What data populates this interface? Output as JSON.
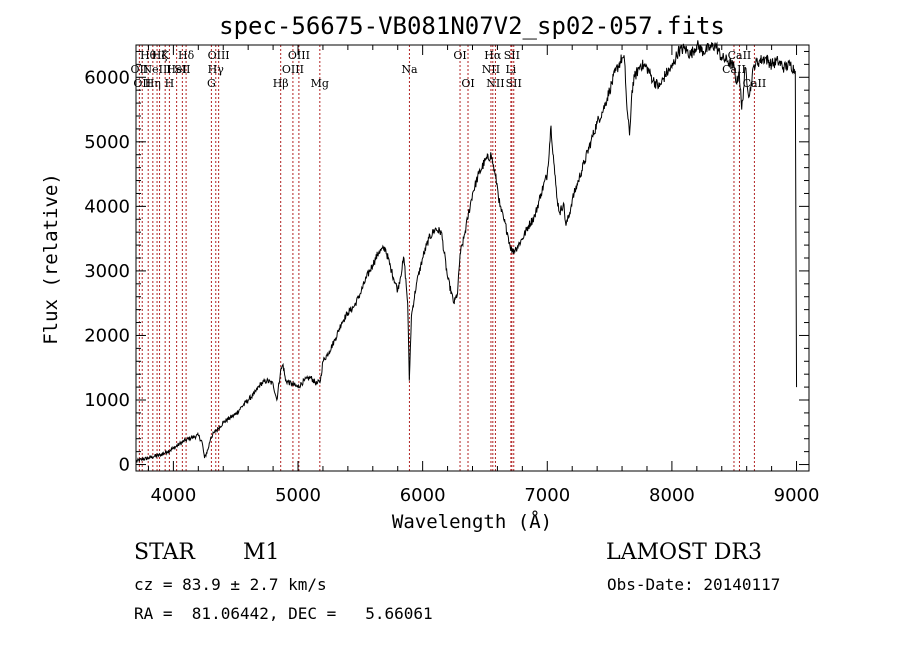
{
  "chart_data": {
    "type": "line",
    "title": "spec-56675-VB081N07V2_sp02-057.fits",
    "xlabel": "Wavelength (Å)",
    "ylabel": "Flux (relative)",
    "xlim": [
      3700,
      9100
    ],
    "ylim": [
      -100,
      6500
    ],
    "xticks": [
      4000,
      5000,
      6000,
      7000,
      8000,
      9000
    ],
    "xtick_labels": [
      "4000",
      "5000",
      "6000",
      "7000",
      "8000",
      "9000"
    ],
    "yticks": [
      0,
      1000,
      2000,
      3000,
      4000,
      5000,
      6000
    ],
    "ytick_labels": [
      "0",
      "1000",
      "2000",
      "3000",
      "4000",
      "5000",
      "6000"
    ],
    "series": [
      {
        "name": "spectrum",
        "x": [
          3700,
          3750,
          3800,
          3850,
          3900,
          3950,
          4000,
          4050,
          4100,
          4150,
          4200,
          4230,
          4250,
          4280,
          4300,
          4330,
          4360,
          4400,
          4450,
          4500,
          4550,
          4600,
          4650,
          4700,
          4750,
          4800,
          4830,
          4860,
          4880,
          4900,
          4950,
          5000,
          5050,
          5100,
          5150,
          5180,
          5200,
          5250,
          5300,
          5350,
          5400,
          5450,
          5500,
          5550,
          5600,
          5650,
          5700,
          5750,
          5800,
          5850,
          5880,
          5893,
          5910,
          5950,
          6000,
          6050,
          6100,
          6150,
          6200,
          6250,
          6280,
          6300,
          6330,
          6360,
          6400,
          6450,
          6500,
          6550,
          6565,
          6580,
          6600,
          6620,
          6650,
          6680,
          6700,
          6720,
          6750,
          6800,
          6850,
          6900,
          6950,
          7000,
          7030,
          7060,
          7080,
          7100,
          7130,
          7150,
          7180,
          7200,
          7250,
          7300,
          7350,
          7400,
          7450,
          7500,
          7550,
          7600,
          7620,
          7640,
          7660,
          7680,
          7700,
          7750,
          7800,
          7850,
          7900,
          7950,
          8000,
          8050,
          8100,
          8150,
          8200,
          8250,
          8300,
          8350,
          8400,
          8450,
          8500,
          8520,
          8540,
          8560,
          8590,
          8620,
          8660,
          8700,
          8750,
          8800,
          8850,
          8900,
          8950,
          8990,
          9000
        ],
        "y": [
          50,
          80,
          100,
          130,
          150,
          200,
          250,
          320,
          380,
          420,
          450,
          350,
          100,
          250,
          420,
          500,
          560,
          650,
          720,
          780,
          900,
          1000,
          1100,
          1250,
          1300,
          1250,
          1000,
          1450,
          1550,
          1300,
          1250,
          1200,
          1300,
          1350,
          1250,
          1300,
          1600,
          1750,
          1950,
          2200,
          2350,
          2450,
          2650,
          2900,
          3100,
          3300,
          3350,
          3000,
          2700,
          3200,
          2500,
          1300,
          2300,
          2800,
          3200,
          3500,
          3650,
          3600,
          2900,
          2500,
          2650,
          3250,
          3500,
          3800,
          4200,
          4500,
          4700,
          4800,
          4650,
          4500,
          4300,
          4000,
          3800,
          3600,
          3400,
          3300,
          3350,
          3500,
          3700,
          3850,
          4200,
          4500,
          5250,
          4500,
          4100,
          3900,
          4050,
          3700,
          3900,
          4100,
          4400,
          4700,
          5000,
          5300,
          5500,
          5800,
          6100,
          6300,
          6250,
          5500,
          5100,
          5800,
          6000,
          6200,
          6150,
          5950,
          5850,
          6050,
          6150,
          6400,
          6450,
          6350,
          6500,
          6400,
          6450,
          6500,
          6300,
          6250,
          6150,
          5900,
          6100,
          5500,
          6150,
          5700,
          6200,
          6250,
          6300,
          6200,
          6250,
          6150,
          6200,
          6100,
          1200
        ]
      }
    ],
    "lines": [
      {
        "x": 3727,
        "label": "OII",
        "row": 2
      },
      {
        "x": 3750,
        "label": "OII",
        "row": 3
      },
      {
        "x": 3798,
        "label": "Hθ",
        "row": 1
      },
      {
        "x": 3835,
        "label": "Hη",
        "row": 3
      },
      {
        "x": 3869,
        "label": "NeIII",
        "row": 2
      },
      {
        "x": 3889,
        "label": "Hζ",
        "row": 1
      },
      {
        "x": 3934,
        "label": "K",
        "row": 1
      },
      {
        "x": 3968,
        "label": "H",
        "row": 3
      },
      {
        "x": 4026,
        "label": "HeI",
        "row": 2
      },
      {
        "x": 4072,
        "label": "SII",
        "row": 2
      },
      {
        "x": 4102,
        "label": "Hδ",
        "row": 1
      },
      {
        "x": 4305,
        "label": "G",
        "row": 3
      },
      {
        "x": 4340,
        "label": "Hγ",
        "row": 2
      },
      {
        "x": 4363,
        "label": "OIII",
        "row": 1
      },
      {
        "x": 4861,
        "label": "Hβ",
        "row": 3
      },
      {
        "x": 4959,
        "label": "OIII",
        "row": 2
      },
      {
        "x": 5007,
        "label": "OIII",
        "row": 1
      },
      {
        "x": 5175,
        "label": "Mg",
        "row": 3
      },
      {
        "x": 5894,
        "label": "Na",
        "row": 2
      },
      {
        "x": 6300,
        "label": "OI",
        "row": 1
      },
      {
        "x": 6364,
        "label": "OI",
        "row": 3
      },
      {
        "x": 6548,
        "label": "NII",
        "row": 2
      },
      {
        "x": 6563,
        "label": "Hα",
        "row": 1
      },
      {
        "x": 6584,
        "label": "NII",
        "row": 3
      },
      {
        "x": 6708,
        "label": "Li",
        "row": 2
      },
      {
        "x": 6716,
        "label": "SII",
        "row": 1
      },
      {
        "x": 6731,
        "label": "SII",
        "row": 3
      },
      {
        "x": 8498,
        "label": "CaII",
        "row": 2
      },
      {
        "x": 8542,
        "label": "CaII",
        "row": 1
      },
      {
        "x": 8662,
        "label": "CaII",
        "row": 3
      }
    ]
  },
  "info": {
    "class": "STAR",
    "subclass": "M1",
    "survey": "LAMOST DR3",
    "redshift_line": "cz = 83.9 ± 2.7 km/s",
    "obs_date_line": "Obs-Date: 20140117",
    "coords_line": "RA =  81.06442, DEC =   5.66061"
  }
}
